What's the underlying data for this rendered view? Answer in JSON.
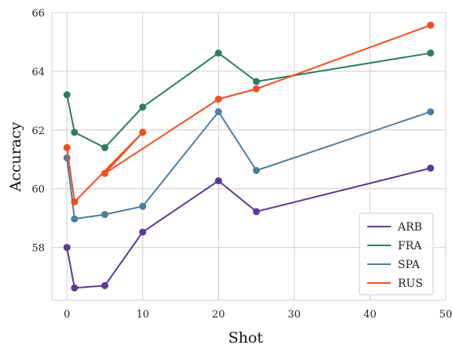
{
  "chart_data": {
    "type": "line",
    "xlabel": "Shot",
    "ylabel": "Accuracy",
    "xlim": [
      -2,
      50
    ],
    "ylim": [
      56.2,
      66
    ],
    "xticks": [
      0,
      10,
      20,
      30,
      40,
      50
    ],
    "yticks": [
      58,
      60,
      62,
      64,
      66
    ],
    "grid": true,
    "legend_position": "lower-right",
    "series": [
      {
        "name": "ARB",
        "color": "#5b3a8f",
        "x": [
          0,
          1,
          5,
          10,
          20,
          25,
          48
        ],
        "y": [
          58.0,
          56.62,
          56.7,
          58.52,
          60.27,
          59.22,
          60.7
        ]
      },
      {
        "name": "FRA",
        "color": "#2e7d5b",
        "x": [
          0,
          1,
          5,
          10,
          20,
          25,
          48
        ],
        "y": [
          63.2,
          61.92,
          61.4,
          62.78,
          64.62,
          63.65,
          64.62
        ]
      },
      {
        "name": "SPA",
        "color": "#4a7f9e",
        "x": [
          0,
          1,
          5,
          10,
          20,
          25,
          48
        ],
        "y": [
          61.05,
          58.97,
          59.12,
          59.4,
          62.62,
          60.62,
          62.62
        ]
      },
      {
        "name": "RUS",
        "color": "#f04e1c",
        "x": [
          0,
          1,
          10,
          5,
          20,
          25,
          48
        ],
        "y": [
          61.4,
          59.55,
          61.92,
          60.52,
          63.05,
          63.4,
          65.57
        ]
      }
    ]
  }
}
